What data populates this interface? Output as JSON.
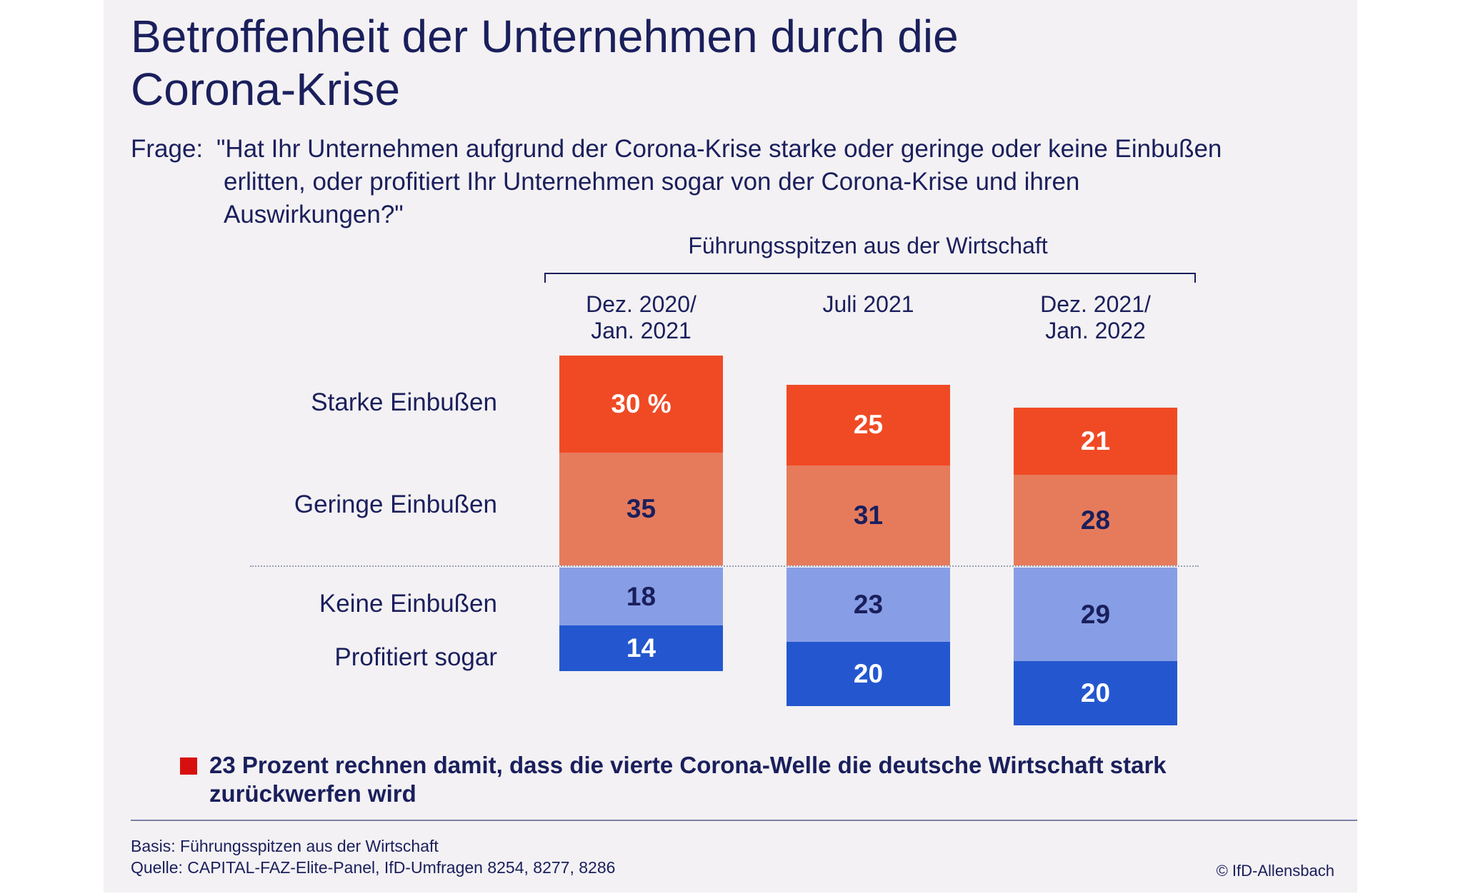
{
  "title": "Betroffenheit der Unternehmen durch die Corona-Krise",
  "question": {
    "label": "Frage:",
    "text": "\"Hat Ihr Unternehmen aufgrund der Corona-Krise starke oder geringe oder keine Einbußen erlitten, oder profitiert Ihr Unternehmen sogar von der Corona-Krise und ihren Auswirkungen?\""
  },
  "group_label": "Führungsspitzen aus der Wirtschaft",
  "note": "23 Prozent rechnen damit, dass die vierte Corona-Welle die deutsche Wirtschaft stark zurückwerfen wird",
  "footer": {
    "basis": "Basis: Führungsspitzen aus der Wirtschaft",
    "source": "Quelle: CAPITAL-FAZ-Elite-Panel, IfD-Umfragen 8254, 8277, 8286",
    "copyright": "© IfD-Allensbach"
  },
  "colors": {
    "starke": "#f04a25",
    "geringe": "#e67b5c",
    "keine": "#879ee6",
    "profitiert": "#2457cf",
    "note_marker": "#d7100f",
    "text": "#1a1f5c"
  },
  "chart_data": {
    "type": "bar",
    "stacking": "diverging",
    "categories": [
      "Dez. 2020/ Jan. 2021",
      "Juli 2021",
      "Dez. 2021/ Jan. 2022"
    ],
    "category_lines": [
      [
        "Dez. 2020/",
        "Jan. 2021"
      ],
      [
        "Juli 2021"
      ],
      [
        "Dez. 2021/",
        "Jan. 2022"
      ]
    ],
    "series": [
      {
        "name": "Starke Einbußen",
        "values": [
          30,
          25,
          21
        ],
        "labels": [
          "30 %",
          "25",
          "21"
        ],
        "side": "above",
        "label_color": "#ffffff"
      },
      {
        "name": "Geringe Einbußen",
        "values": [
          35,
          31,
          28
        ],
        "labels": [
          "35",
          "31",
          "28"
        ],
        "side": "above",
        "label_color": "#1a1f5c"
      },
      {
        "name": "Keine Einbußen",
        "values": [
          18,
          23,
          29
        ],
        "labels": [
          "18",
          "23",
          "29"
        ],
        "side": "below",
        "label_color": "#1a1f5c"
      },
      {
        "name": "Profitiert sogar",
        "values": [
          14,
          20,
          20
        ],
        "labels": [
          "14",
          "20",
          "20"
        ],
        "side": "below",
        "label_color": "#ffffff"
      }
    ],
    "unit": "%"
  }
}
